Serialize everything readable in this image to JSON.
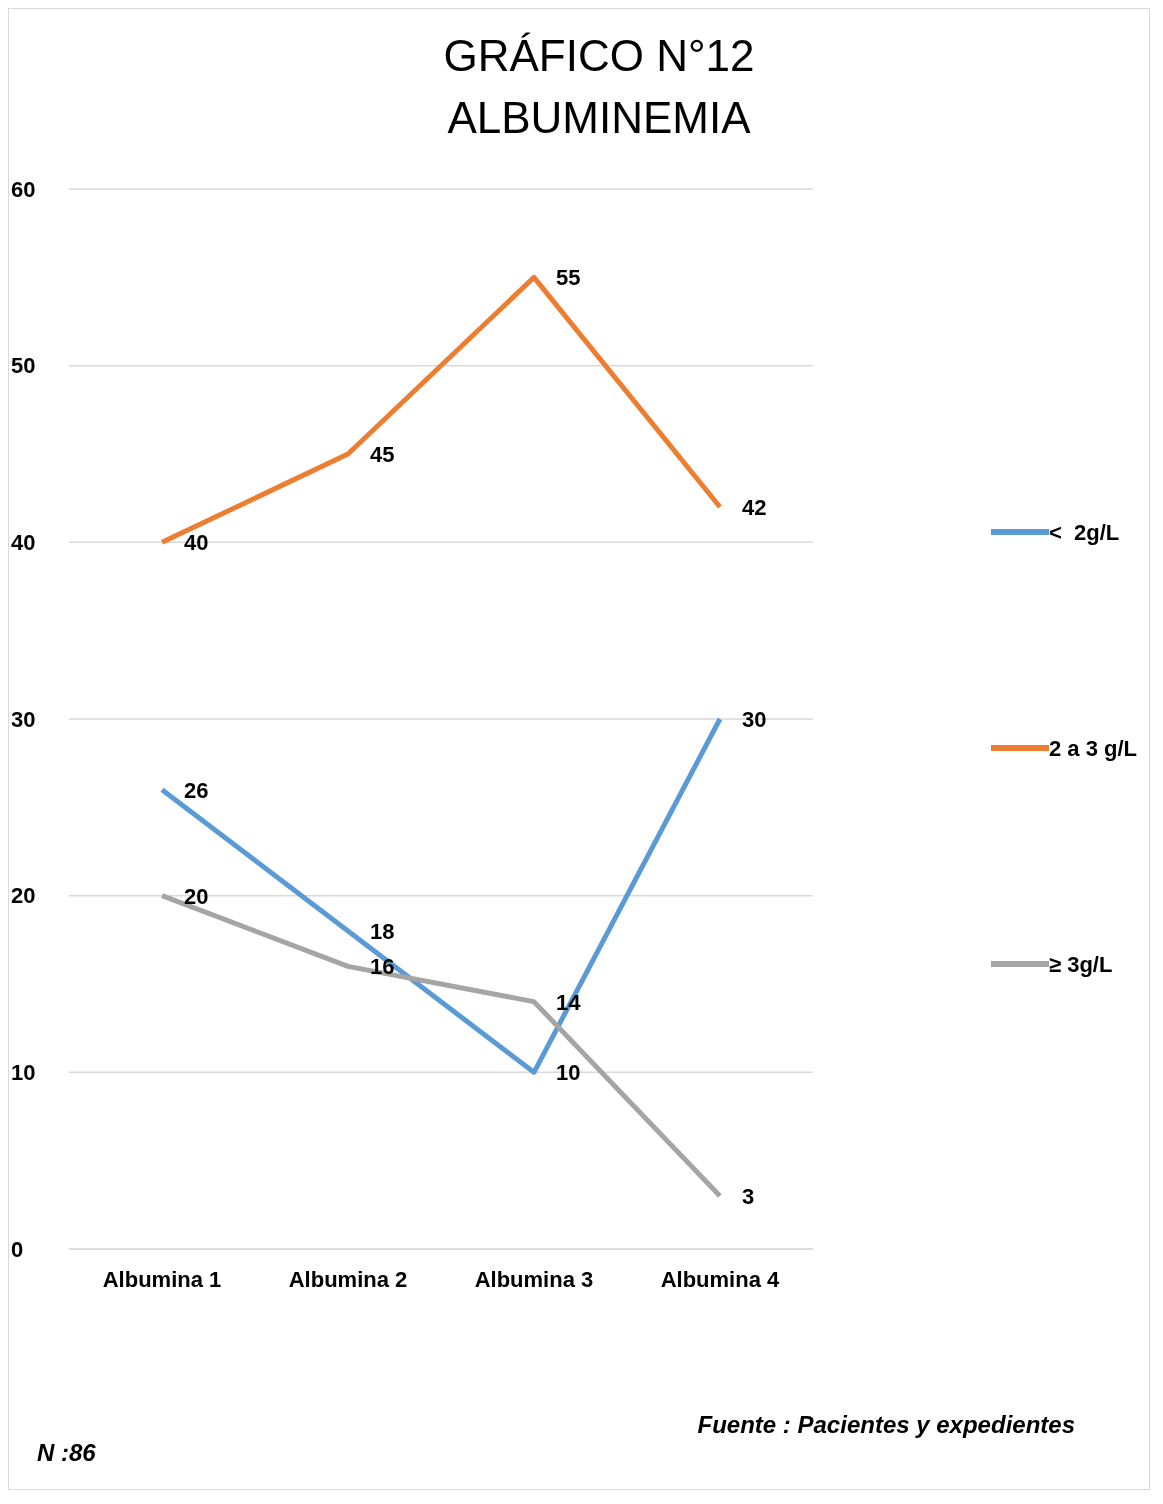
{
  "chart_data": {
    "type": "line",
    "title": "GRÁFICO N°12\nALBUMINEMIA",
    "categories": [
      "Albumina 1",
      "Albumina 2",
      "Albumina 3",
      "Albumina 4"
    ],
    "series": [
      {
        "name": "<  2g/L",
        "color": "#5b9bd5",
        "values": [
          26,
          18,
          10,
          30
        ]
      },
      {
        "name": "2 a 3 g/L",
        "color": "#ed7d31",
        "values": [
          40,
          45,
          55,
          42
        ]
      },
      {
        "name": "≥ 3g/L",
        "color": "#a5a5a5",
        "values": [
          20,
          16,
          14,
          3
        ]
      }
    ],
    "ylim": [
      0,
      60
    ],
    "yticks": [
      0,
      10,
      20,
      30,
      40,
      50,
      60
    ],
    "grid": "y",
    "legend": "right",
    "marker": "none",
    "data_labels": true,
    "annotations": [
      "Fuente : Pacientes y expedientes",
      "N :86"
    ]
  }
}
